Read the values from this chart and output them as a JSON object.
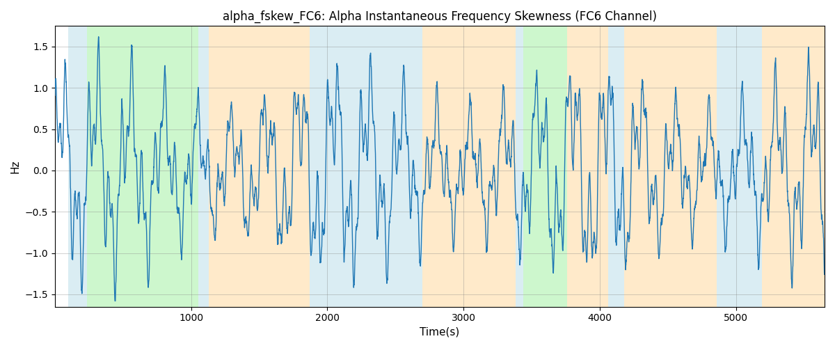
{
  "title": "alpha_fskew_FC6: Alpha Instantaneous Frequency Skewness (FC6 Channel)",
  "xlabel": "Time(s)",
  "ylabel": "Hz",
  "xlim": [
    0,
    5650
  ],
  "ylim": [
    -1.65,
    1.75
  ],
  "line_color": "#1f77b4",
  "line_width": 1.0,
  "background_color": "#ffffff",
  "yticks": [
    -1.5,
    -1.0,
    -0.5,
    0.0,
    0.5,
    1.0,
    1.5
  ],
  "xticks": [
    1000,
    2000,
    3000,
    4000,
    5000
  ],
  "bands": [
    {
      "start": 100,
      "end": 235,
      "color": "#add8e6",
      "alpha": 0.45
    },
    {
      "start": 235,
      "end": 1055,
      "color": "#90ee90",
      "alpha": 0.45
    },
    {
      "start": 1055,
      "end": 1130,
      "color": "#add8e6",
      "alpha": 0.45
    },
    {
      "start": 1130,
      "end": 1870,
      "color": "#ffd9a0",
      "alpha": 0.55
    },
    {
      "start": 1870,
      "end": 2700,
      "color": "#add8e6",
      "alpha": 0.45
    },
    {
      "start": 2700,
      "end": 3380,
      "color": "#ffd9a0",
      "alpha": 0.55
    },
    {
      "start": 3380,
      "end": 3440,
      "color": "#add8e6",
      "alpha": 0.45
    },
    {
      "start": 3440,
      "end": 3760,
      "color": "#90ee90",
      "alpha": 0.45
    },
    {
      "start": 3760,
      "end": 4060,
      "color": "#ffd9a0",
      "alpha": 0.55
    },
    {
      "start": 4060,
      "end": 4180,
      "color": "#add8e6",
      "alpha": 0.45
    },
    {
      "start": 4180,
      "end": 4860,
      "color": "#ffd9a0",
      "alpha": 0.55
    },
    {
      "start": 4860,
      "end": 5190,
      "color": "#add8e6",
      "alpha": 0.45
    },
    {
      "start": 5190,
      "end": 5650,
      "color": "#ffd9a0",
      "alpha": 0.55
    }
  ],
  "seed": 42,
  "n_points": 5500
}
